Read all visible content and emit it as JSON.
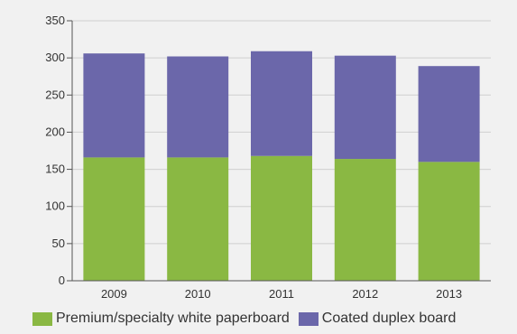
{
  "chart_data": {
    "type": "bar",
    "stacked": true,
    "categories": [
      "2009",
      "2010",
      "2011",
      "2012",
      "2013"
    ],
    "series": [
      {
        "name": "Premium/specialty white paperboard",
        "color": "#8ab843",
        "values": [
          166,
          166,
          168,
          164,
          160
        ]
      },
      {
        "name": "Coated duplex board",
        "color": "#6b67aa",
        "values": [
          140,
          136,
          141,
          139,
          129
        ]
      }
    ],
    "ylim": [
      0,
      350
    ],
    "yticks": [
      "0",
      "50",
      "100",
      "150",
      "200",
      "250",
      "300",
      "350"
    ],
    "grid": true,
    "legend": "bottom",
    "title": "",
    "xlabel": "",
    "ylabel": ""
  }
}
